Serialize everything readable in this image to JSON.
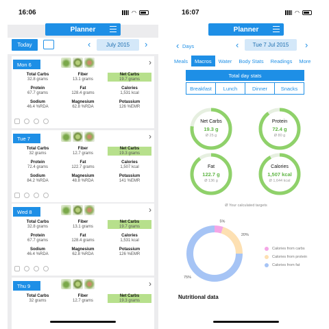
{
  "left": {
    "status_time": "16:06",
    "title": "Planner",
    "today_label": "Today",
    "month_label": "July 2015",
    "days": [
      {
        "day": "Mon 6",
        "cells": [
          {
            "label": "Total Carbs",
            "value": "32.8 grams"
          },
          {
            "label": "Fiber",
            "value": "13.1 grams"
          },
          {
            "label": "Net Carbs",
            "value": "19.7 grams"
          },
          {
            "label": "Protein",
            "value": "67.7 grams"
          },
          {
            "label": "Fat",
            "value": "128.4 grams"
          },
          {
            "label": "Calories",
            "value": "1,531 kcal"
          },
          {
            "label": "Sodium",
            "value": "46.4 %RDA"
          },
          {
            "label": "Magnesium",
            "value": "62.8 %RDA"
          },
          {
            "label": "Potassium",
            "value": "126 %EMR"
          }
        ]
      },
      {
        "day": "Tue 7",
        "cells": [
          {
            "label": "Total Carbs",
            "value": "32 grams"
          },
          {
            "label": "Fiber",
            "value": "12.7 grams"
          },
          {
            "label": "Net Carbs",
            "value": "19.3 grams"
          },
          {
            "label": "Protein",
            "value": "72.4 grams"
          },
          {
            "label": "Fat",
            "value": "122.7 grams"
          },
          {
            "label": "Calories",
            "value": "1,507 kcal"
          },
          {
            "label": "Sodium",
            "value": "84.2 %RDA"
          },
          {
            "label": "Magnesium",
            "value": "48.8 %RDA"
          },
          {
            "label": "Potassium",
            "value": "141 %EMR"
          }
        ]
      },
      {
        "day": "Wed 8",
        "cells": [
          {
            "label": "Total Carbs",
            "value": "32.8 grams"
          },
          {
            "label": "Fiber",
            "value": "13.1 grams"
          },
          {
            "label": "Net Carbs",
            "value": "19.7 grams"
          },
          {
            "label": "Protein",
            "value": "67.7 grams"
          },
          {
            "label": "Fat",
            "value": "128.4 grams"
          },
          {
            "label": "Calories",
            "value": "1,531 kcal"
          },
          {
            "label": "Sodium",
            "value": "46.4 %RDA"
          },
          {
            "label": "Magnesium",
            "value": "62.8 %RDA"
          },
          {
            "label": "Potassium",
            "value": "126 %EMR"
          }
        ]
      },
      {
        "day": "Thu 9",
        "cells": [
          {
            "label": "Total Carbs",
            "value": "32 grams"
          },
          {
            "label": "Fiber",
            "value": "12.7 grams"
          },
          {
            "label": "Net Carbs",
            "value": "19.3 grams"
          }
        ]
      }
    ]
  },
  "right": {
    "status_time": "16:07",
    "title": "Planner",
    "back_label": "Days",
    "date_label": "Tue 7 Jul 2015",
    "tabs": [
      "Meals",
      "Macros",
      "Water",
      "Body Stats",
      "Readings",
      "More"
    ],
    "active_tab": "Macros",
    "total_day_stats": "Total day stats",
    "meals": [
      "Breakfast",
      "Lunch",
      "Dinner",
      "Snacks"
    ],
    "rings": [
      {
        "label": "Net Carbs",
        "value": "19.3 g",
        "target": "Ø 25 g",
        "fraction": 0.77
      },
      {
        "label": "Protein",
        "value": "72.4 g",
        "target": "Ø 80 g",
        "fraction": 0.9
      },
      {
        "label": "Fat",
        "value": "122.7 g",
        "target": "Ø 136 g",
        "fraction": 0.9
      },
      {
        "label": "Calories",
        "value": "1,507 kcal",
        "target": "Ø 1,644 kcal",
        "fraction": 0.92
      }
    ],
    "targets_note": "Ø Your calculated targets",
    "nutritional_data": "Nutritional data"
  },
  "chart_data": {
    "type": "pie",
    "slices": [
      {
        "name": "Calories from carbs",
        "value": 5,
        "label": "5%",
        "color": "#f4a6e6"
      },
      {
        "name": "Calories from protein",
        "value": 20,
        "label": "20%",
        "color": "#fde0b2"
      },
      {
        "name": "Calories from fat",
        "value": 75,
        "label": "75%",
        "color": "#a6c4f5"
      }
    ]
  },
  "colors": {
    "accent": "#1e8fe6",
    "highlight": "#b7e08c",
    "ring": "#8fd16a",
    "ring_track": "#e6efe0"
  }
}
